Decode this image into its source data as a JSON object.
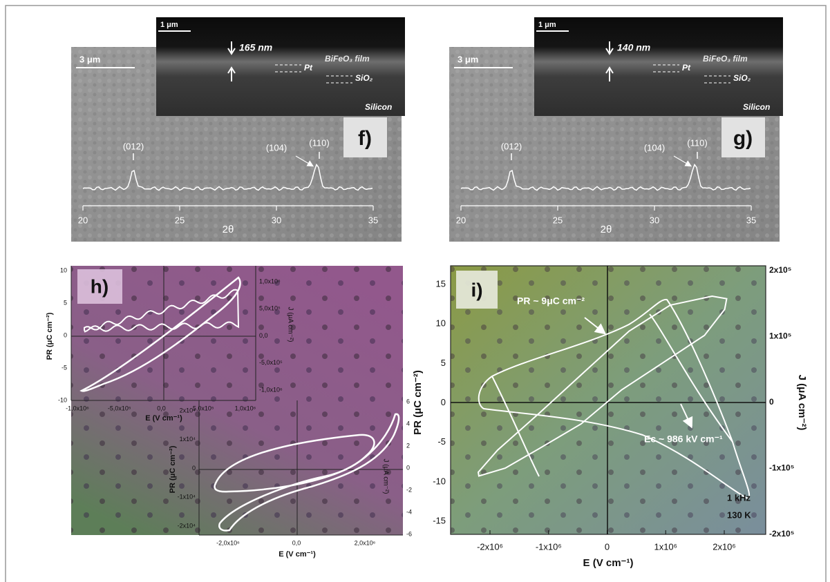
{
  "panels": {
    "f": {
      "label": "f)",
      "scale_bar": "3 μm",
      "inset": {
        "scale_bar": "1 μm",
        "thickness": "165 nm",
        "film": "BiFeO₃ film",
        "electrode": "Pt",
        "oxide": "SiO₂",
        "substrate": "Silicon"
      },
      "xrd": {
        "peaks": [
          "(012)",
          "(104)",
          "(110)"
        ],
        "xticks": [
          "20",
          "25",
          "30",
          "35"
        ],
        "xlabel": "2θ"
      }
    },
    "g": {
      "label": "g)",
      "scale_bar": "3 μm",
      "inset": {
        "scale_bar": "1 μm",
        "thickness": "140 nm",
        "film": "BiFeO₃ film",
        "electrode": "Pt",
        "oxide": "SiO₂",
        "substrate": "Silicon"
      },
      "xrd": {
        "peaks": [
          "(012)",
          "(104)",
          "(110)"
        ],
        "xticks": [
          "20",
          "25",
          "30",
          "35"
        ],
        "xlabel": "2θ"
      }
    },
    "h": {
      "label": "h)",
      "upper": {
        "ylabel": "PR (μC cm⁻²)",
        "yticks": [
          "10",
          "5",
          "0",
          "-5",
          "-10"
        ],
        "xlabel": "E (V cm⁻¹)",
        "xticks": [
          "-1,0x10⁶",
          "-5,0x10⁵",
          "0,0",
          "5,0x10⁵",
          "1,0x10⁶"
        ],
        "y2label": "J (μA cm⁻²)",
        "y2ticks": [
          "1,0x10⁶",
          "5,0x10⁵",
          "0,0",
          "-5,0x10⁵",
          "-1,0x10⁶"
        ]
      },
      "lower": {
        "ylabel": "PR (μC cm⁻²)",
        "yticks": [
          "2x10⁴",
          "1x10⁴",
          "0",
          "-1x10⁴",
          "-2x10⁴"
        ],
        "xlabel": "E (V cm⁻¹)",
        "xticks": [
          "-2,0x10⁶",
          "0,0",
          "2,0x10⁶"
        ],
        "y2label": "J (μA cm⁻²)",
        "y2ticks": [
          "6",
          "4",
          "2",
          "0",
          "-2",
          "-4",
          "-6"
        ]
      }
    },
    "i": {
      "label": "i)",
      "ylabel": "PR (μC cm⁻²)",
      "yticks": [
        "15",
        "10",
        "5",
        "0",
        "-5",
        "-10",
        "-15"
      ],
      "xlabel": "E (V cm⁻¹)",
      "xticks": [
        "-2x10⁶",
        "-1x10⁶",
        "0",
        "1x10⁶",
        "2x10⁶"
      ],
      "y2label": "J (μA cm⁻²)",
      "y2ticks": [
        "2x10⁵",
        "1x10⁵",
        "0",
        "-1x10⁵",
        "-2x10⁵"
      ],
      "annotations": {
        "remanent": "PR ~ 9μC cm⁻²",
        "coercive": "Ec ~ 986 kV cm⁻¹",
        "frequency": "1 kHz",
        "temperature": "130 K"
      }
    }
  }
}
